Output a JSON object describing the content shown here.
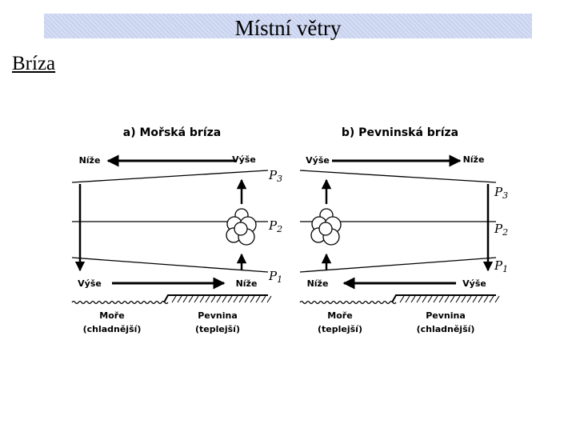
{
  "header": {
    "title": "Místní větry"
  },
  "subtitle": "Bríza",
  "panels": [
    {
      "title": "a) Mořská bríza",
      "top_left": "Níže",
      "top_right": "Výše",
      "bottom_left": "Výše",
      "bottom_right": "Níže",
      "pressure": [
        {
          "letter": "P",
          "sub": "3"
        },
        {
          "letter": "P",
          "sub": "2"
        },
        {
          "letter": "P",
          "sub": "1"
        }
      ],
      "sea": [
        "Moře",
        "(chladnější)"
      ],
      "land": [
        "Pevnina",
        "(teplejší)"
      ]
    },
    {
      "title": "b) Pevninská bríza",
      "top_left": "Výše",
      "top_right": "Níže",
      "bottom_left": "Níže",
      "bottom_right": "Výše",
      "pressure": [
        {
          "letter": "P",
          "sub": "3"
        },
        {
          "letter": "P",
          "sub": "2"
        },
        {
          "letter": "P",
          "sub": "1"
        }
      ],
      "sea": [
        "Moře",
        "(teplejší)"
      ],
      "land": [
        "Pevnina",
        "(chladnější)"
      ]
    }
  ]
}
